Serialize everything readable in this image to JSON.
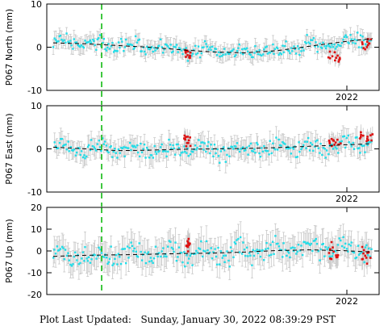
{
  "footer": {
    "label": "Plot Last Updated:",
    "timestamp": "Sunday, January 30, 2022 08:39:29 PST"
  },
  "colors": {
    "point": "#22dde8",
    "recent_point": "#dd1111",
    "error_bar": "#c8c8c8",
    "trend": "#000000",
    "marker": "#11bb11",
    "frame": "#000000"
  },
  "chart_data": [
    {
      "type": "scatter",
      "ylabel": "P067 North (mm)",
      "ylim": [
        -10,
        10
      ],
      "yticks": [
        -10,
        0,
        10
      ],
      "xtick_labels": [
        "2022"
      ],
      "trend": [
        [
          0,
          1.0
        ],
        [
          0.1,
          0.8
        ],
        [
          0.2,
          0.4
        ],
        [
          0.3,
          0.0
        ],
        [
          0.4,
          -0.6
        ],
        [
          0.5,
          -1.1
        ],
        [
          0.6,
          -1.3
        ],
        [
          0.7,
          -0.8
        ],
        [
          0.8,
          0.2
        ],
        [
          0.9,
          1.2
        ],
        [
          1.0,
          2.0
        ]
      ],
      "seasonal_amp": 0.6,
      "noise": 1.2,
      "err": 1.6,
      "red_clusters": [
        {
          "x": [
            0.41,
            0.43
          ],
          "y": -1.5
        },
        {
          "x": [
            0.86,
            0.9
          ],
          "y": -2.2
        },
        {
          "x": [
            0.96,
            1.0
          ],
          "y": 0.8
        }
      ]
    },
    {
      "type": "scatter",
      "ylabel": "P067 East (mm)",
      "ylim": [
        -10,
        10
      ],
      "yticks": [
        -10,
        0,
        10
      ],
      "xtick_labels": [
        "2022"
      ],
      "trend": [
        [
          0,
          0.4
        ],
        [
          0.1,
          0.0
        ],
        [
          0.2,
          -0.4
        ],
        [
          0.3,
          -0.3
        ],
        [
          0.4,
          -0.1
        ],
        [
          0.5,
          0.0
        ],
        [
          0.6,
          0.1
        ],
        [
          0.7,
          0.3
        ],
        [
          0.8,
          0.6
        ],
        [
          0.9,
          0.9
        ],
        [
          1.0,
          1.2
        ]
      ],
      "seasonal_amp": 0.8,
      "noise": 1.3,
      "err": 2.0,
      "red_clusters": [
        {
          "x": [
            0.41,
            0.43
          ],
          "y": 2.0
        },
        {
          "x": [
            0.86,
            0.9
          ],
          "y": 1.5
        },
        {
          "x": [
            0.96,
            1.0
          ],
          "y": 2.5
        }
      ]
    },
    {
      "type": "scatter",
      "ylabel": "P067 Up (mm)",
      "ylim": [
        -20,
        20
      ],
      "yticks": [
        -20,
        -10,
        0,
        10,
        20
      ],
      "xtick_labels": [
        "2022"
      ],
      "trend": [
        [
          0,
          -2.5
        ],
        [
          0.1,
          -2.0
        ],
        [
          0.2,
          -1.8
        ],
        [
          0.3,
          -1.5
        ],
        [
          0.4,
          -1.2
        ],
        [
          0.5,
          -1.0
        ],
        [
          0.6,
          -0.5
        ],
        [
          0.7,
          0.2
        ],
        [
          0.8,
          0.5
        ],
        [
          0.9,
          0.2
        ],
        [
          1.0,
          -0.5
        ]
      ],
      "seasonal_amp": 2.0,
      "noise": 3.5,
      "err": 5.5,
      "red_clusters": [
        {
          "x": [
            0.41,
            0.43
          ],
          "y": 2.0
        },
        {
          "x": [
            0.86,
            0.9
          ],
          "y": -1.0
        },
        {
          "x": [
            0.96,
            1.0
          ],
          "y": -1.5
        }
      ]
    }
  ]
}
